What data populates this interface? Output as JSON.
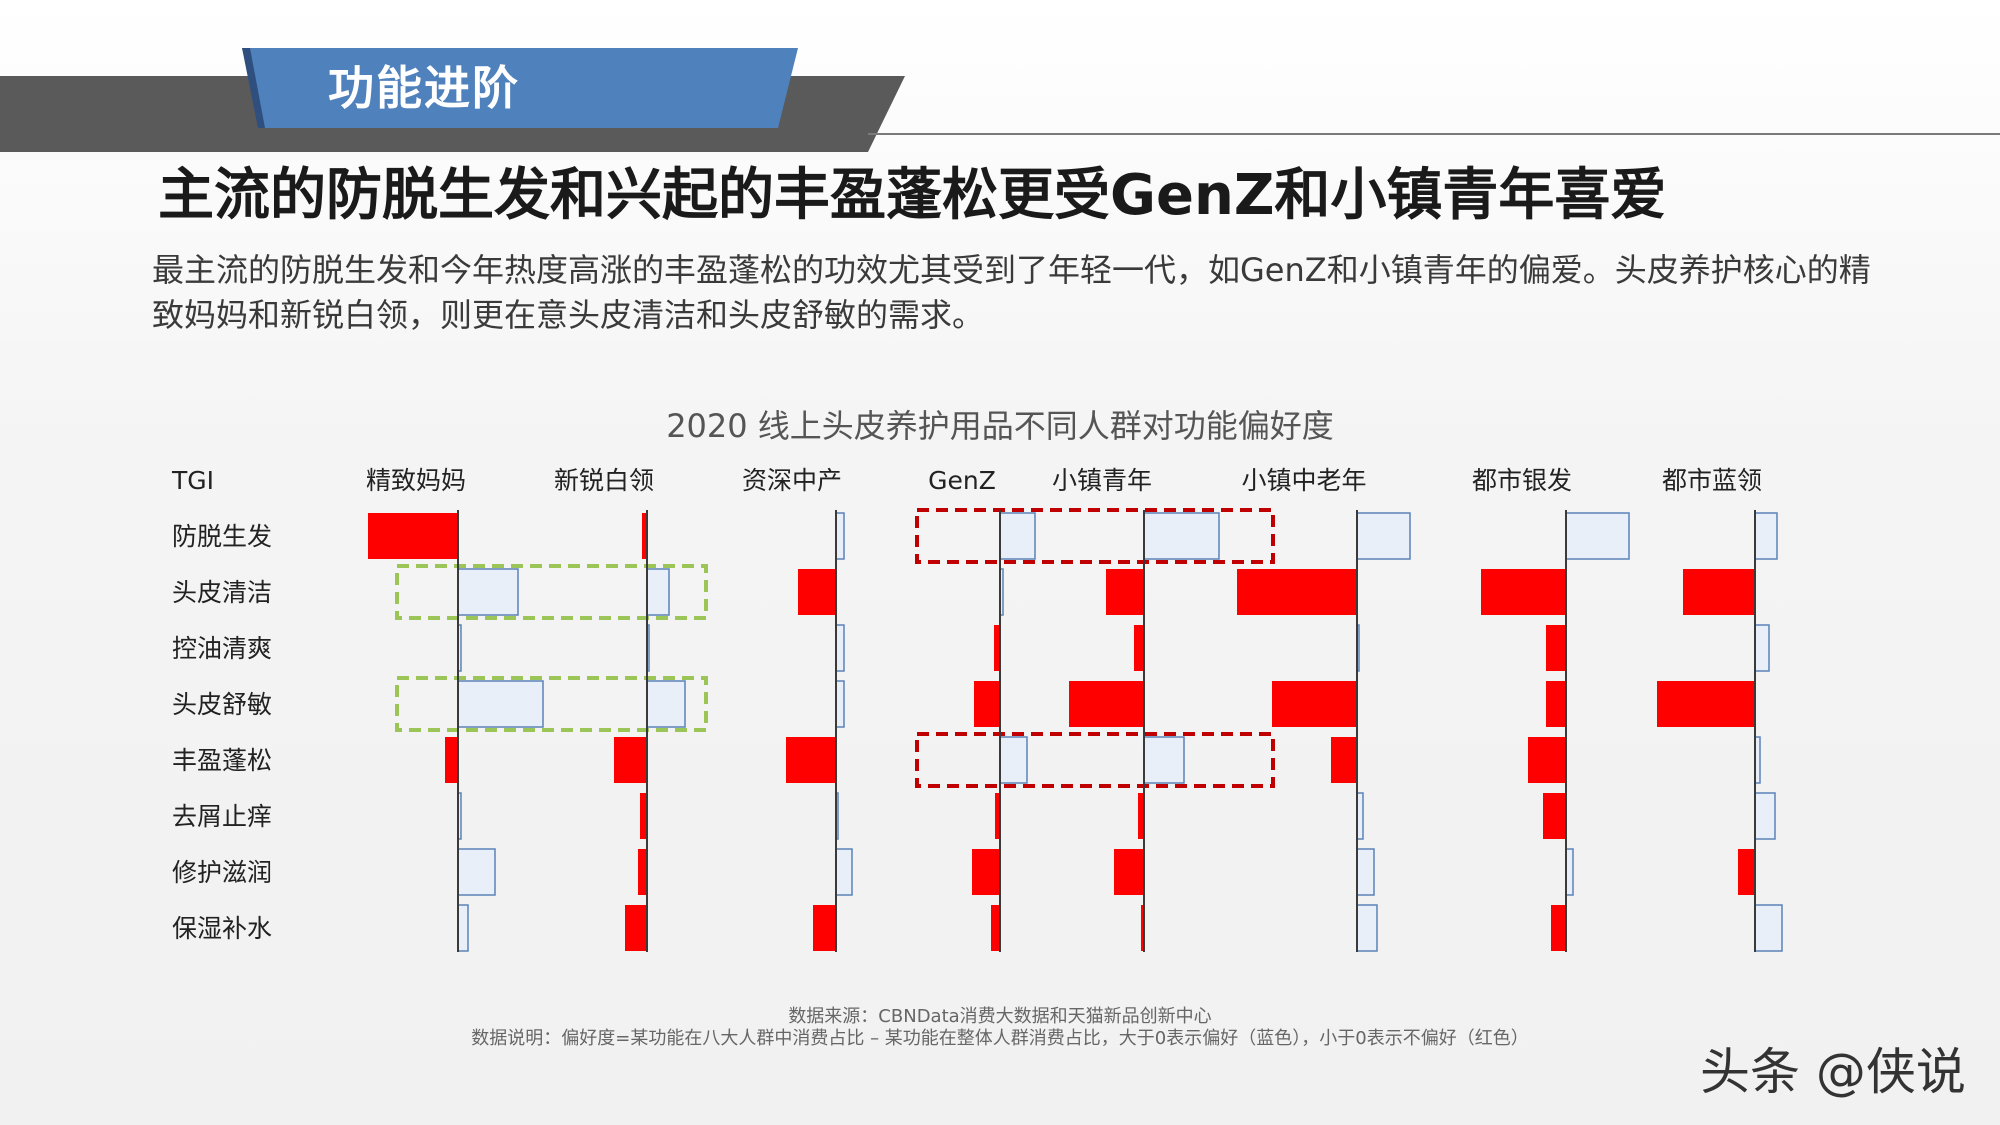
{
  "banner": {
    "title": "功能进阶"
  },
  "headline": "主流的防脱生发和兴起的丰盈蓬松更受GenZ和小镇青年喜爱",
  "description": "最主流的防脱生发和今年热度高涨的丰盈蓬松的功效尤其受到了年轻一代，如GenZ和小镇青年的偏爱。头皮养护核心的精致妈妈和新锐白领，则更在意头皮清洁和头皮舒敏的需求。",
  "colors": {
    "positive_fill": "#e8eff8",
    "positive_stroke": "#5a82b8",
    "negative_fill": "#ff0000",
    "highlight_green": "#9bc556",
    "highlight_red": "#c00000",
    "banner_blue": "#4f81bd",
    "banner_gray": "#5a5a5a"
  },
  "chart_data": {
    "type": "bar",
    "title": "2020 线上头皮养护用品不同人群对功能偏好度",
    "corner_label": "TGI",
    "categories": [
      "防脱生发",
      "头皮清洁",
      "控油清爽",
      "头皮舒敏",
      "丰盈蓬松",
      "去屑止痒",
      "修护滋润",
      "保湿补水"
    ],
    "series": [
      {
        "name": "精致妈妈",
        "values": [
          -0.9,
          0.6,
          0.03,
          0.85,
          -0.13,
          0.03,
          0.37,
          0.1
        ]
      },
      {
        "name": "新锐白领",
        "values": [
          -0.05,
          0.22,
          0.01,
          0.38,
          -0.33,
          -0.07,
          -0.09,
          -0.22
        ]
      },
      {
        "name": "资深中产",
        "values": [
          0.08,
          -0.38,
          0.08,
          0.08,
          -0.5,
          0.02,
          0.16,
          -0.23
        ]
      },
      {
        "name": "GenZ",
        "values": [
          0.35,
          0.03,
          -0.06,
          -0.26,
          0.27,
          -0.05,
          -0.28,
          -0.09
        ]
      },
      {
        "name": "小镇青年",
        "values": [
          0.75,
          -0.38,
          -0.1,
          -0.75,
          0.4,
          -0.06,
          -0.3,
          -0.03
        ]
      },
      {
        "name": "小镇中老年",
        "values": [
          0.53,
          -1.2,
          0.01,
          -0.85,
          -0.26,
          0.06,
          0.17,
          0.2
        ]
      },
      {
        "name": "都市银发",
        "values": [
          0.63,
          -0.85,
          -0.2,
          -0.2,
          -0.38,
          -0.23,
          0.07,
          -0.15
        ]
      },
      {
        "name": "都市蓝领",
        "values": [
          0.22,
          -0.72,
          0.14,
          -0.98,
          0.05,
          0.2,
          -0.17,
          0.27
        ]
      }
    ],
    "highlights": [
      {
        "color": "green",
        "from_series": 0,
        "to_series": 1,
        "category": "头皮清洁"
      },
      {
        "color": "green",
        "from_series": 0,
        "to_series": 1,
        "category": "头皮舒敏"
      },
      {
        "color": "red",
        "from_series": 3,
        "to_series": 4,
        "category": "防脱生发"
      },
      {
        "color": "red",
        "from_series": 3,
        "to_series": 4,
        "category": "丰盈蓬松"
      }
    ],
    "legend": "none",
    "grid": false
  },
  "footnotes": {
    "source": "数据来源：CBNData消费大数据和天猫新品创新中心",
    "note": "数据说明：偏好度=某功能在八大人群中消费占比 – 某功能在整体人群消费占比，大于0表示偏好（蓝色），小于0表示不偏好（红色）"
  },
  "watermark": "头条 @侠说"
}
